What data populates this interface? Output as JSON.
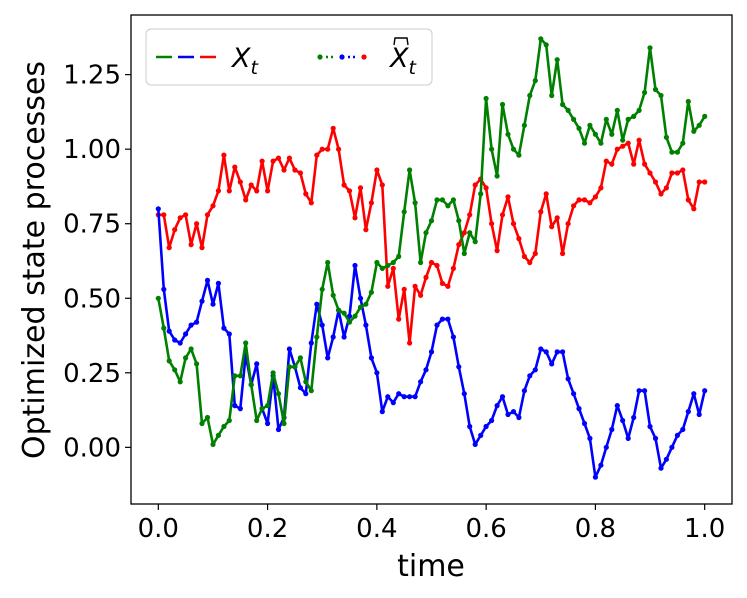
{
  "chart_data": {
    "type": "line",
    "xlabel": "time",
    "ylabel": "Optimized state processes",
    "xlim": [
      -0.05,
      1.05
    ],
    "ylim": [
      -0.19,
      1.45
    ],
    "x_ticks": [
      0.0,
      0.2,
      0.4,
      0.6,
      0.8,
      1.0
    ],
    "x_tick_labels": [
      "0.0",
      "0.2",
      "0.4",
      "0.6",
      "0.8",
      "1.0"
    ],
    "y_ticks": [
      0.0,
      0.25,
      0.5,
      0.75,
      1.0,
      1.25
    ],
    "y_tick_labels": [
      "0.00",
      "0.25",
      "0.50",
      "0.75",
      "1.00",
      "1.25"
    ],
    "grid": false,
    "legend": {
      "placement": "top-left",
      "entries": [
        {
          "label": "X_t",
          "style": "dashed",
          "colors": [
            "#008000",
            "#0000ff",
            "#ff0000"
          ]
        },
        {
          "label": "X̂_t",
          "style": "dotted-markers",
          "colors": [
            "#008000",
            "#0000ff",
            "#ff0000"
          ]
        }
      ]
    },
    "series": [
      {
        "color": "#ff0000",
        "points": [
          [
            0.0,
            0.78
          ],
          [
            0.01,
            0.78
          ],
          [
            0.02,
            0.67
          ],
          [
            0.03,
            0.73
          ],
          [
            0.04,
            0.77
          ],
          [
            0.05,
            0.78
          ],
          [
            0.06,
            0.68
          ],
          [
            0.07,
            0.75
          ],
          [
            0.08,
            0.67
          ],
          [
            0.09,
            0.78
          ],
          [
            0.1,
            0.81
          ],
          [
            0.11,
            0.86
          ],
          [
            0.12,
            0.98
          ],
          [
            0.13,
            0.86
          ],
          [
            0.14,
            0.94
          ],
          [
            0.15,
            0.89
          ],
          [
            0.16,
            0.83
          ],
          [
            0.17,
            0.88
          ],
          [
            0.18,
            0.86
          ],
          [
            0.19,
            0.96
          ],
          [
            0.2,
            0.86
          ],
          [
            0.21,
            0.96
          ],
          [
            0.22,
            0.97
          ],
          [
            0.23,
            0.93
          ],
          [
            0.24,
            0.97
          ],
          [
            0.25,
            0.93
          ],
          [
            0.26,
            0.92
          ],
          [
            0.27,
            0.85
          ],
          [
            0.28,
            0.82
          ],
          [
            0.29,
            0.98
          ],
          [
            0.3,
            1.0
          ],
          [
            0.31,
            1.0
          ],
          [
            0.32,
            1.07
          ],
          [
            0.33,
            1.0
          ],
          [
            0.34,
            0.88
          ],
          [
            0.35,
            0.86
          ],
          [
            0.36,
            0.77
          ],
          [
            0.37,
            0.87
          ],
          [
            0.38,
            0.73
          ],
          [
            0.39,
            0.82
          ],
          [
            0.4,
            0.93
          ],
          [
            0.41,
            0.88
          ],
          [
            0.42,
            0.54
          ],
          [
            0.43,
            0.6
          ],
          [
            0.44,
            0.43
          ],
          [
            0.45,
            0.53
          ],
          [
            0.46,
            0.35
          ],
          [
            0.47,
            0.54
          ],
          [
            0.48,
            0.51
          ],
          [
            0.49,
            0.57
          ],
          [
            0.5,
            0.62
          ],
          [
            0.51,
            0.61
          ],
          [
            0.52,
            0.55
          ],
          [
            0.53,
            0.54
          ],
          [
            0.54,
            0.6
          ],
          [
            0.55,
            0.68
          ],
          [
            0.56,
            0.72
          ],
          [
            0.57,
            0.78
          ],
          [
            0.58,
            0.88
          ],
          [
            0.59,
            0.9
          ],
          [
            0.6,
            0.87
          ],
          [
            0.61,
            0.75
          ],
          [
            0.62,
            0.66
          ],
          [
            0.63,
            0.78
          ],
          [
            0.64,
            0.84
          ],
          [
            0.65,
            0.75
          ],
          [
            0.66,
            0.7
          ],
          [
            0.67,
            0.64
          ],
          [
            0.68,
            0.62
          ],
          [
            0.69,
            0.65
          ],
          [
            0.7,
            0.79
          ],
          [
            0.71,
            0.85
          ],
          [
            0.72,
            0.74
          ],
          [
            0.73,
            0.77
          ],
          [
            0.74,
            0.65
          ],
          [
            0.75,
            0.75
          ],
          [
            0.76,
            0.81
          ],
          [
            0.77,
            0.83
          ],
          [
            0.78,
            0.83
          ],
          [
            0.79,
            0.82
          ],
          [
            0.8,
            0.84
          ],
          [
            0.81,
            0.87
          ],
          [
            0.82,
            0.96
          ],
          [
            0.83,
            0.95
          ],
          [
            0.84,
            1.0
          ],
          [
            0.85,
            1.01
          ],
          [
            0.86,
            1.02
          ],
          [
            0.87,
            0.95
          ],
          [
            0.88,
            1.03
          ],
          [
            0.89,
            0.95
          ],
          [
            0.9,
            0.92
          ],
          [
            0.91,
            0.89
          ],
          [
            0.92,
            0.85
          ],
          [
            0.93,
            0.87
          ],
          [
            0.94,
            0.92
          ],
          [
            0.95,
            0.92
          ],
          [
            0.96,
            0.93
          ],
          [
            0.97,
            0.83
          ],
          [
            0.98,
            0.8
          ],
          [
            0.99,
            0.89
          ],
          [
            1.0,
            0.89
          ]
        ]
      },
      {
        "color": "#0000ff",
        "points": [
          [
            0.0,
            0.8
          ],
          [
            0.01,
            0.53
          ],
          [
            0.02,
            0.39
          ],
          [
            0.03,
            0.36
          ],
          [
            0.04,
            0.35
          ],
          [
            0.05,
            0.38
          ],
          [
            0.06,
            0.41
          ],
          [
            0.07,
            0.42
          ],
          [
            0.08,
            0.49
          ],
          [
            0.09,
            0.56
          ],
          [
            0.1,
            0.48
          ],
          [
            0.11,
            0.55
          ],
          [
            0.12,
            0.4
          ],
          [
            0.13,
            0.38
          ],
          [
            0.14,
            0.14
          ],
          [
            0.15,
            0.13
          ],
          [
            0.16,
            0.31
          ],
          [
            0.17,
            0.21
          ],
          [
            0.18,
            0.28
          ],
          [
            0.19,
            0.13
          ],
          [
            0.2,
            0.08
          ],
          [
            0.21,
            0.24
          ],
          [
            0.22,
            0.06
          ],
          [
            0.23,
            0.1
          ],
          [
            0.24,
            0.33
          ],
          [
            0.25,
            0.27
          ],
          [
            0.26,
            0.2
          ],
          [
            0.27,
            0.18
          ],
          [
            0.28,
            0.35
          ],
          [
            0.29,
            0.48
          ],
          [
            0.3,
            0.41
          ],
          [
            0.31,
            0.3
          ],
          [
            0.32,
            0.37
          ],
          [
            0.33,
            0.46
          ],
          [
            0.34,
            0.37
          ],
          [
            0.35,
            0.44
          ],
          [
            0.36,
            0.61
          ],
          [
            0.37,
            0.5
          ],
          [
            0.38,
            0.41
          ],
          [
            0.39,
            0.3
          ],
          [
            0.4,
            0.25
          ],
          [
            0.41,
            0.12
          ],
          [
            0.42,
            0.17
          ],
          [
            0.43,
            0.15
          ],
          [
            0.44,
            0.18
          ],
          [
            0.45,
            0.17
          ],
          [
            0.46,
            0.17
          ],
          [
            0.47,
            0.17
          ],
          [
            0.48,
            0.22
          ],
          [
            0.49,
            0.26
          ],
          [
            0.5,
            0.32
          ],
          [
            0.51,
            0.41
          ],
          [
            0.52,
            0.43
          ],
          [
            0.53,
            0.43
          ],
          [
            0.54,
            0.37
          ],
          [
            0.55,
            0.27
          ],
          [
            0.56,
            0.18
          ],
          [
            0.57,
            0.07
          ],
          [
            0.58,
            0.01
          ],
          [
            0.59,
            0.04
          ],
          [
            0.6,
            0.07
          ],
          [
            0.61,
            0.09
          ],
          [
            0.62,
            0.14
          ],
          [
            0.63,
            0.17
          ],
          [
            0.64,
            0.11
          ],
          [
            0.65,
            0.12
          ],
          [
            0.66,
            0.1
          ],
          [
            0.67,
            0.19
          ],
          [
            0.68,
            0.24
          ],
          [
            0.69,
            0.26
          ],
          [
            0.7,
            0.33
          ],
          [
            0.71,
            0.32
          ],
          [
            0.72,
            0.28
          ],
          [
            0.73,
            0.32
          ],
          [
            0.74,
            0.32
          ],
          [
            0.75,
            0.23
          ],
          [
            0.76,
            0.18
          ],
          [
            0.77,
            0.13
          ],
          [
            0.78,
            0.08
          ],
          [
            0.79,
            0.03
          ],
          [
            0.8,
            -0.1
          ],
          [
            0.81,
            -0.06
          ],
          [
            0.82,
            0.0
          ],
          [
            0.83,
            0.06
          ],
          [
            0.84,
            0.14
          ],
          [
            0.85,
            0.09
          ],
          [
            0.86,
            0.03
          ],
          [
            0.87,
            0.1
          ],
          [
            0.88,
            0.19
          ],
          [
            0.89,
            0.19
          ],
          [
            0.9,
            0.07
          ],
          [
            0.91,
            0.03
          ],
          [
            0.92,
            -0.07
          ],
          [
            0.93,
            -0.04
          ],
          [
            0.94,
            0.0
          ],
          [
            0.95,
            0.04
          ],
          [
            0.96,
            0.06
          ],
          [
            0.97,
            0.12
          ],
          [
            0.98,
            0.18
          ],
          [
            0.99,
            0.11
          ],
          [
            1.0,
            0.19
          ]
        ]
      },
      {
        "color": "#008000",
        "points": [
          [
            0.0,
            0.5
          ],
          [
            0.01,
            0.4
          ],
          [
            0.02,
            0.29
          ],
          [
            0.03,
            0.26
          ],
          [
            0.04,
            0.22
          ],
          [
            0.05,
            0.3
          ],
          [
            0.06,
            0.33
          ],
          [
            0.07,
            0.28
          ],
          [
            0.08,
            0.08
          ],
          [
            0.09,
            0.1
          ],
          [
            0.1,
            0.01
          ],
          [
            0.11,
            0.04
          ],
          [
            0.12,
            0.07
          ],
          [
            0.13,
            0.09
          ],
          [
            0.14,
            0.24
          ],
          [
            0.15,
            0.24
          ],
          [
            0.16,
            0.35
          ],
          [
            0.17,
            0.21
          ],
          [
            0.18,
            0.09
          ],
          [
            0.19,
            0.13
          ],
          [
            0.2,
            0.14
          ],
          [
            0.21,
            0.25
          ],
          [
            0.22,
            0.18
          ],
          [
            0.23,
            0.08
          ],
          [
            0.24,
            0.27
          ],
          [
            0.25,
            0.27
          ],
          [
            0.26,
            0.3
          ],
          [
            0.27,
            0.22
          ],
          [
            0.28,
            0.19
          ],
          [
            0.29,
            0.37
          ],
          [
            0.3,
            0.53
          ],
          [
            0.31,
            0.62
          ],
          [
            0.32,
            0.51
          ],
          [
            0.33,
            0.46
          ],
          [
            0.34,
            0.45
          ],
          [
            0.35,
            0.42
          ],
          [
            0.36,
            0.44
          ],
          [
            0.37,
            0.47
          ],
          [
            0.38,
            0.48
          ],
          [
            0.39,
            0.52
          ],
          [
            0.4,
            0.62
          ],
          [
            0.41,
            0.6
          ],
          [
            0.42,
            0.61
          ],
          [
            0.43,
            0.62
          ],
          [
            0.44,
            0.64
          ],
          [
            0.45,
            0.79
          ],
          [
            0.46,
            0.93
          ],
          [
            0.47,
            0.82
          ],
          [
            0.48,
            0.62
          ],
          [
            0.49,
            0.72
          ],
          [
            0.5,
            0.76
          ],
          [
            0.51,
            0.83
          ],
          [
            0.52,
            0.83
          ],
          [
            0.53,
            0.81
          ],
          [
            0.54,
            0.83
          ],
          [
            0.55,
            0.76
          ],
          [
            0.56,
            0.65
          ],
          [
            0.57,
            0.72
          ],
          [
            0.58,
            0.69
          ],
          [
            0.59,
            0.85
          ],
          [
            0.6,
            1.17
          ],
          [
            0.61,
            1.0
          ],
          [
            0.62,
            0.91
          ],
          [
            0.63,
            1.15
          ],
          [
            0.64,
            1.05
          ],
          [
            0.65,
            1.0
          ],
          [
            0.66,
            0.98
          ],
          [
            0.67,
            1.08
          ],
          [
            0.68,
            1.18
          ],
          [
            0.69,
            1.23
          ],
          [
            0.7,
            1.37
          ],
          [
            0.71,
            1.35
          ],
          [
            0.72,
            1.18
          ],
          [
            0.73,
            1.3
          ],
          [
            0.74,
            1.15
          ],
          [
            0.75,
            1.13
          ],
          [
            0.76,
            1.1
          ],
          [
            0.77,
            1.07
          ],
          [
            0.78,
            1.02
          ],
          [
            0.79,
            1.08
          ],
          [
            0.8,
            1.05
          ],
          [
            0.81,
            1.02
          ],
          [
            0.82,
            1.1
          ],
          [
            0.83,
            1.05
          ],
          [
            0.84,
            1.13
          ],
          [
            0.85,
            1.03
          ],
          [
            0.86,
            1.1
          ],
          [
            0.87,
            1.11
          ],
          [
            0.88,
            1.13
          ],
          [
            0.89,
            1.19
          ],
          [
            0.9,
            1.34
          ],
          [
            0.91,
            1.2
          ],
          [
            0.92,
            1.18
          ],
          [
            0.93,
            1.04
          ],
          [
            0.94,
            0.99
          ],
          [
            0.95,
            0.99
          ],
          [
            0.96,
            1.02
          ],
          [
            0.97,
            1.16
          ],
          [
            0.98,
            1.06
          ],
          [
            0.99,
            1.08
          ],
          [
            1.0,
            1.11
          ]
        ]
      }
    ]
  }
}
